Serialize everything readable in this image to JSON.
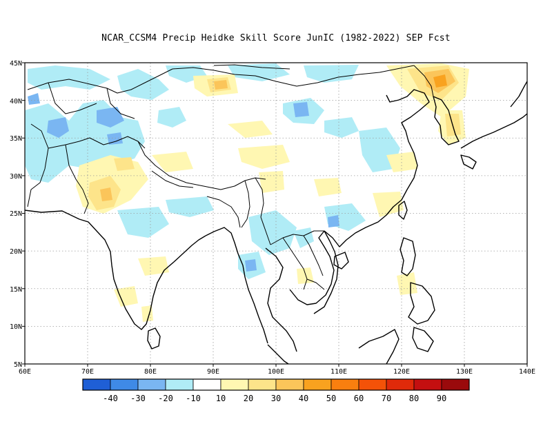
{
  "title": "NCAR_CCSM4 Precip Heidke Skill Score JunIC (1982-2022) SEP Fcst",
  "map": {
    "lon_range": [
      60,
      140
    ],
    "lat_range": [
      5,
      45
    ],
    "lon_ticks": [
      "60E",
      "70E",
      "80E",
      "90E",
      "100E",
      "110E",
      "120E",
      "130E",
      "140E"
    ],
    "lat_ticks": [
      "5N",
      "10N",
      "15N",
      "20N",
      "25N",
      "30N",
      "35N",
      "40N",
      "45N"
    ],
    "gridlines": "dotted"
  },
  "colorbar": {
    "colors": [
      "#1f5fd6",
      "#3f8ae6",
      "#7ab6f2",
      "#b0ecf6",
      "#ffffff",
      "#fff7b2",
      "#fde48a",
      "#fbc55a",
      "#f9a21f",
      "#f97f0f",
      "#f45208",
      "#e02a0a",
      "#c40f10",
      "#9a0a0c"
    ],
    "labels": [
      "-40",
      "-30",
      "-20",
      "-10",
      "10",
      "20",
      "30",
      "40",
      "50",
      "60",
      "70",
      "80",
      "90"
    ]
  },
  "chart_data": {
    "type": "heatmap",
    "title": "NCAR_CCSM4 Precip Heidke Skill Score JunIC (1982-2022) SEP Fcst",
    "x_range": [
      60,
      140
    ],
    "y_range": [
      5,
      45
    ],
    "levels": [
      -40,
      -30,
      -20,
      -10,
      10,
      20,
      30,
      40,
      50,
      60,
      70,
      80,
      90
    ]
  }
}
